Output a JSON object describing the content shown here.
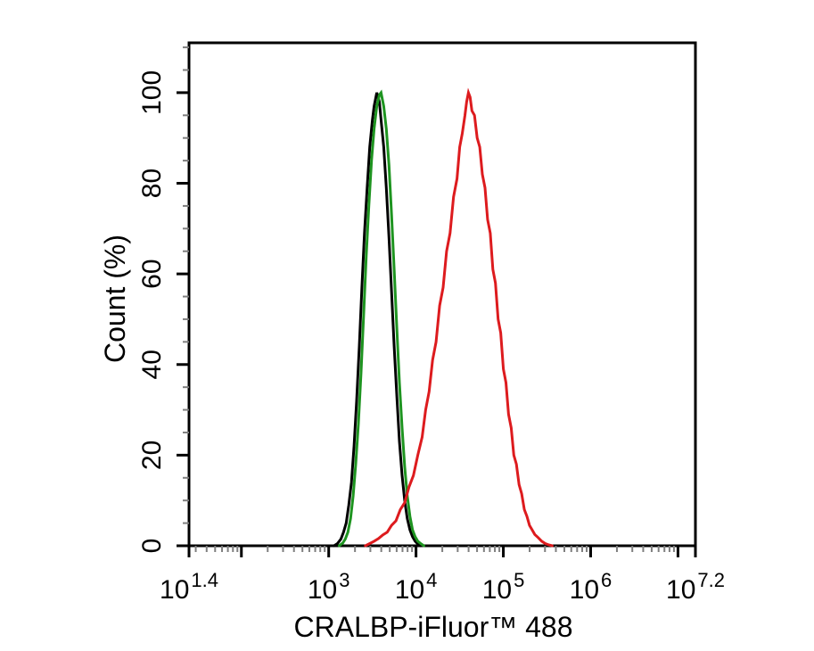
{
  "chart_data": {
    "type": "line",
    "subtype": "flow-cytometry-overlay-histogram",
    "title": "",
    "xlabel": "CRALBP-iFluor™ 488",
    "ylabel": "Count (%)",
    "x_scale": "log10",
    "x_range_log10": [
      1.4,
      7.2
    ],
    "y_range": [
      0,
      100
    ],
    "grid": false,
    "legend": "none",
    "colors": {
      "axis": "#000000",
      "text": "#000000",
      "minor_tick": "#7f7f7f",
      "background": "#ffffff",
      "series_black": "#000000",
      "series_green": "#1e9420",
      "series_red": "#dd1b1e"
    },
    "x_axis": {
      "major_ticks": [
        {
          "log": 1.4,
          "base": "10",
          "exp": "1.4"
        },
        {
          "log": 2,
          "base": "10",
          "exp": null
        },
        {
          "log": 3,
          "base": "10",
          "exp": "3"
        },
        {
          "log": 4,
          "base": "10",
          "exp": "4"
        },
        {
          "log": 5,
          "base": "10",
          "exp": "5"
        },
        {
          "log": 6,
          "base": "10",
          "exp": "6"
        },
        {
          "log": 7,
          "base": "10",
          "exp": null
        },
        {
          "log": 7.2,
          "base": "10",
          "exp": "7.2"
        }
      ],
      "minor_ticks": "log-decade-subdivisions-2-to-9"
    },
    "y_axis": {
      "tick_values": [
        0,
        20,
        40,
        60,
        80,
        100
      ],
      "minor_step": 5
    },
    "series": [
      {
        "name": "black",
        "color": "#000000",
        "points": [
          [
            3.06,
            0
          ],
          [
            3.1,
            0.5
          ],
          [
            3.14,
            1.5
          ],
          [
            3.17,
            3
          ],
          [
            3.2,
            5
          ],
          [
            3.23,
            9
          ],
          [
            3.26,
            14
          ],
          [
            3.29,
            22
          ],
          [
            3.32,
            32
          ],
          [
            3.35,
            44
          ],
          [
            3.38,
            57
          ],
          [
            3.41,
            69
          ],
          [
            3.44,
            79
          ],
          [
            3.47,
            88
          ],
          [
            3.5,
            94
          ],
          [
            3.52,
            97
          ],
          [
            3.55,
            100
          ],
          [
            3.58,
            98
          ],
          [
            3.6,
            94
          ],
          [
            3.63,
            88
          ],
          [
            3.66,
            79
          ],
          [
            3.69,
            68
          ],
          [
            3.72,
            56
          ],
          [
            3.75,
            44
          ],
          [
            3.78,
            33
          ],
          [
            3.81,
            23
          ],
          [
            3.84,
            15.5
          ],
          [
            3.87,
            10
          ],
          [
            3.9,
            6
          ],
          [
            3.93,
            3.5
          ],
          [
            3.96,
            2
          ],
          [
            3.99,
            1
          ],
          [
            4.02,
            0.4
          ],
          [
            4.05,
            0
          ]
        ]
      },
      {
        "name": "green",
        "color": "#1e9420",
        "points": [
          [
            3.12,
            0
          ],
          [
            3.16,
            0.6
          ],
          [
            3.19,
            1.5
          ],
          [
            3.22,
            3
          ],
          [
            3.25,
            6
          ],
          [
            3.28,
            11
          ],
          [
            3.31,
            18
          ],
          [
            3.34,
            27
          ],
          [
            3.37,
            38
          ],
          [
            3.4,
            51
          ],
          [
            3.43,
            64
          ],
          [
            3.46,
            75
          ],
          [
            3.49,
            85
          ],
          [
            3.52,
            92
          ],
          [
            3.55,
            97
          ],
          [
            3.58,
            99.5
          ],
          [
            3.6,
            100
          ],
          [
            3.63,
            97
          ],
          [
            3.66,
            92
          ],
          [
            3.69,
            84
          ],
          [
            3.72,
            73
          ],
          [
            3.75,
            61
          ],
          [
            3.78,
            48
          ],
          [
            3.81,
            36
          ],
          [
            3.84,
            26
          ],
          [
            3.87,
            17.5
          ],
          [
            3.9,
            11
          ],
          [
            3.93,
            6.5
          ],
          [
            3.96,
            3.5
          ],
          [
            3.99,
            2
          ],
          [
            4.02,
            1
          ],
          [
            4.06,
            0.4
          ],
          [
            4.09,
            0
          ]
        ]
      },
      {
        "name": "red",
        "color": "#dd1b1e",
        "points": [
          [
            3.42,
            0
          ],
          [
            3.47,
            0.5
          ],
          [
            3.52,
            1
          ],
          [
            3.57,
            1.6
          ],
          [
            3.62,
            2.4
          ],
          [
            3.67,
            3
          ],
          [
            3.72,
            4.5
          ],
          [
            3.77,
            5.5
          ],
          [
            3.82,
            8
          ],
          [
            3.87,
            9.5
          ],
          [
            3.92,
            13
          ],
          [
            3.97,
            15.5
          ],
          [
            4.02,
            20
          ],
          [
            4.07,
            24
          ],
          [
            4.11,
            30
          ],
          [
            4.15,
            34
          ],
          [
            4.19,
            41
          ],
          [
            4.23,
            45
          ],
          [
            4.27,
            53
          ],
          [
            4.31,
            57
          ],
          [
            4.35,
            65
          ],
          [
            4.39,
            69
          ],
          [
            4.43,
            77
          ],
          [
            4.47,
            81
          ],
          [
            4.5,
            88
          ],
          [
            4.53,
            91
          ],
          [
            4.56,
            95
          ],
          [
            4.58,
            98
          ],
          [
            4.6,
            100
          ],
          [
            4.62,
            99
          ],
          [
            4.64,
            96
          ],
          [
            4.67,
            95
          ],
          [
            4.7,
            90
          ],
          [
            4.73,
            88
          ],
          [
            4.76,
            82
          ],
          [
            4.79,
            79
          ],
          [
            4.82,
            72
          ],
          [
            4.85,
            69
          ],
          [
            4.88,
            61
          ],
          [
            4.91,
            58
          ],
          [
            4.94,
            50
          ],
          [
            4.97,
            47
          ],
          [
            5.0,
            39
          ],
          [
            5.03,
            36
          ],
          [
            5.06,
            29
          ],
          [
            5.09,
            26
          ],
          [
            5.12,
            20
          ],
          [
            5.15,
            18
          ],
          [
            5.18,
            13.5
          ],
          [
            5.21,
            11.5
          ],
          [
            5.24,
            8
          ],
          [
            5.27,
            6.5
          ],
          [
            5.3,
            4.5
          ],
          [
            5.33,
            3.5
          ],
          [
            5.36,
            2.5
          ],
          [
            5.4,
            1.8
          ],
          [
            5.44,
            1
          ],
          [
            5.48,
            0.5
          ],
          [
            5.52,
            0.2
          ],
          [
            5.56,
            0
          ]
        ]
      }
    ]
  }
}
